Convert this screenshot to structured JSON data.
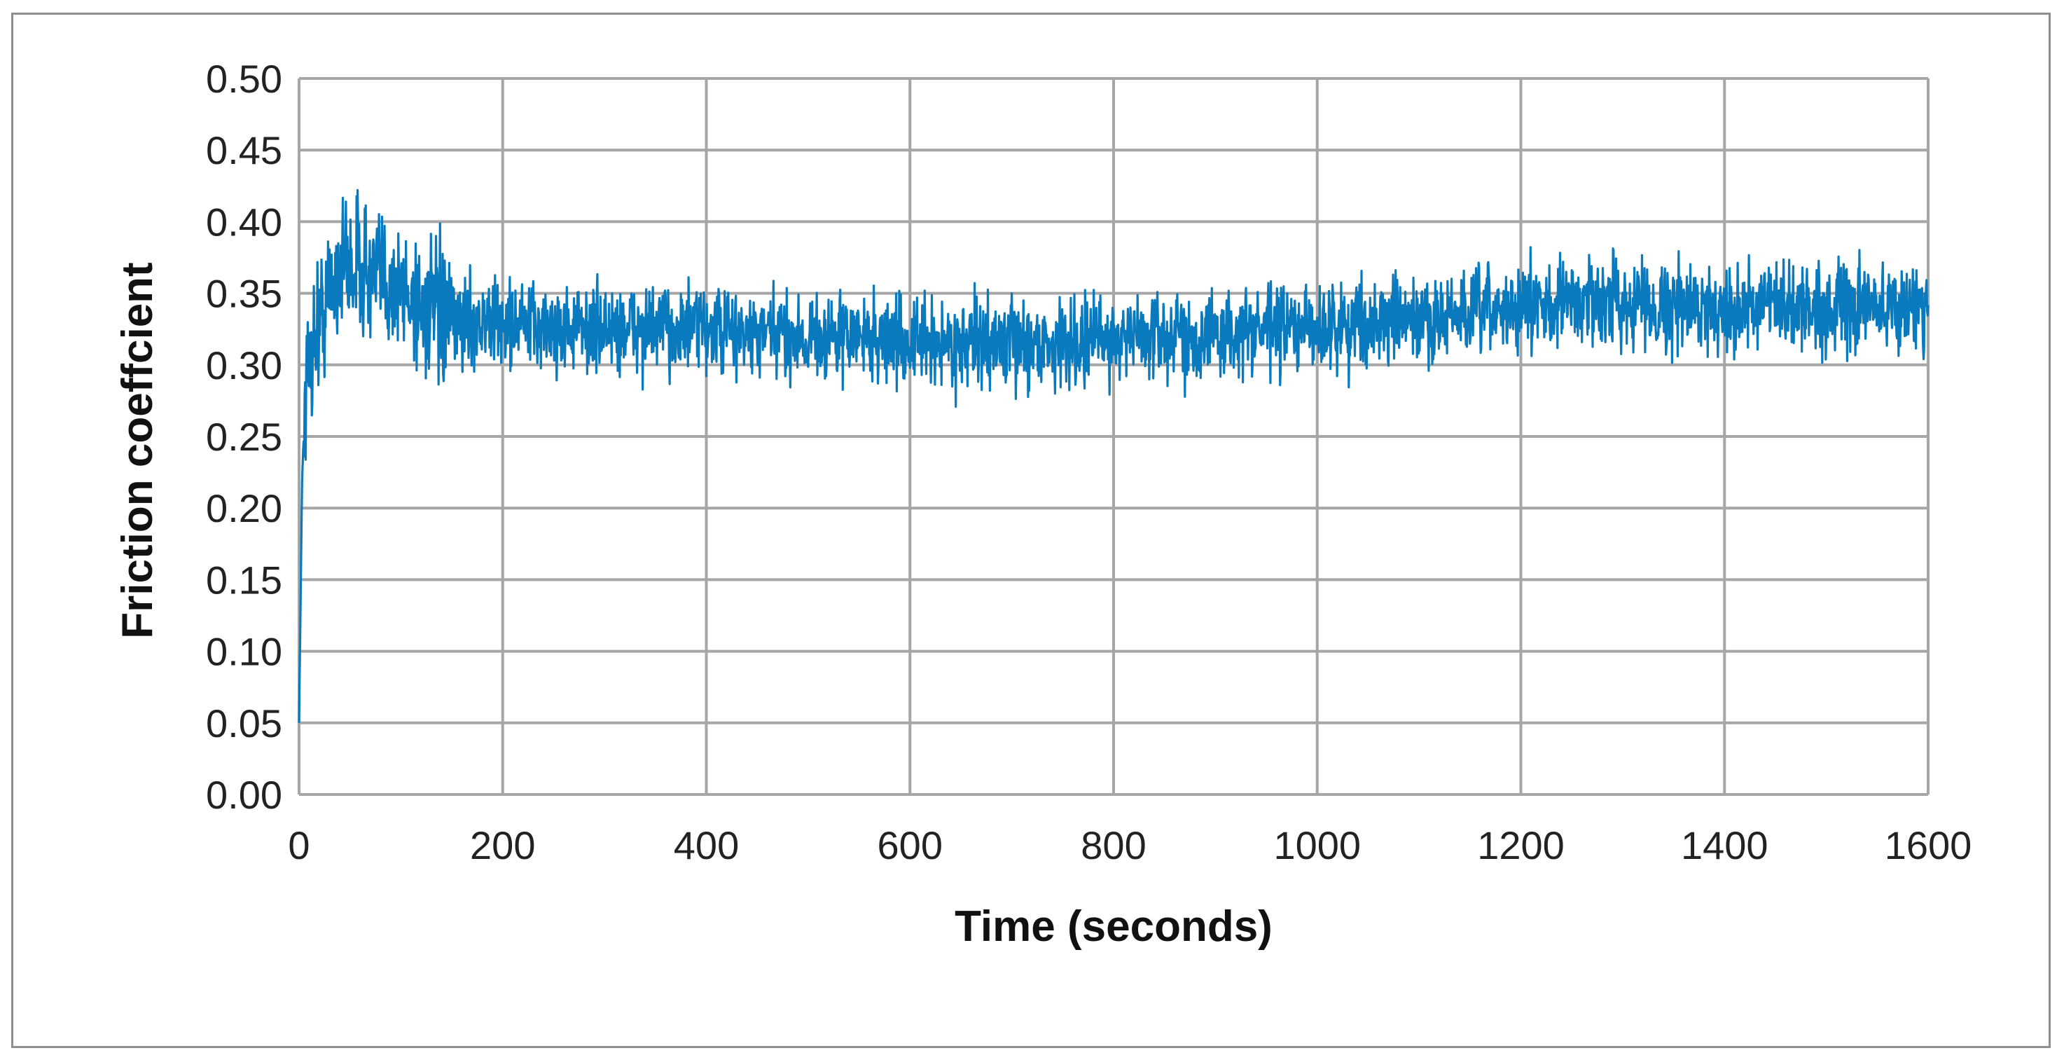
{
  "chart_data": {
    "type": "line",
    "title": "",
    "xlabel": "Time (seconds)",
    "ylabel": "Friction coeffcient",
    "xlim": [
      0,
      1600
    ],
    "ylim": [
      0,
      0.5
    ],
    "x_ticks": [
      "0",
      "200",
      "400",
      "600",
      "800",
      "1000",
      "1200",
      "1400",
      "1600"
    ],
    "y_ticks": [
      "0.00",
      "0.05",
      "0.10",
      "0.15",
      "0.20",
      "0.25",
      "0.30",
      "0.35",
      "0.40",
      "0.45",
      "0.50"
    ],
    "grid": true,
    "legend": "none",
    "series": [
      {
        "color": "#0a7abf",
        "x": [
          0,
          3,
          6,
          10,
          15,
          20,
          30,
          40,
          50,
          60,
          70,
          80,
          90,
          100,
          110,
          120,
          130,
          140,
          150,
          175,
          200,
          250,
          300,
          350,
          400,
          450,
          500,
          550,
          600,
          650,
          700,
          750,
          800,
          850,
          900,
          950,
          1000,
          1050,
          1100,
          1150,
          1200,
          1250,
          1300,
          1350,
          1400,
          1450,
          1500,
          1550,
          1600
        ],
        "y": [
          0.05,
          0.22,
          0.28,
          0.3,
          0.32,
          0.33,
          0.35,
          0.37,
          0.37,
          0.37,
          0.36,
          0.36,
          0.36,
          0.35,
          0.35,
          0.34,
          0.34,
          0.33,
          0.33,
          0.33,
          0.33,
          0.325,
          0.325,
          0.325,
          0.325,
          0.32,
          0.32,
          0.32,
          0.315,
          0.315,
          0.315,
          0.315,
          0.32,
          0.32,
          0.32,
          0.325,
          0.325,
          0.33,
          0.33,
          0.335,
          0.34,
          0.345,
          0.345,
          0.34,
          0.34,
          0.34,
          0.34,
          0.34,
          0.34
        ],
        "noise_amplitude": 0.03
      }
    ]
  }
}
